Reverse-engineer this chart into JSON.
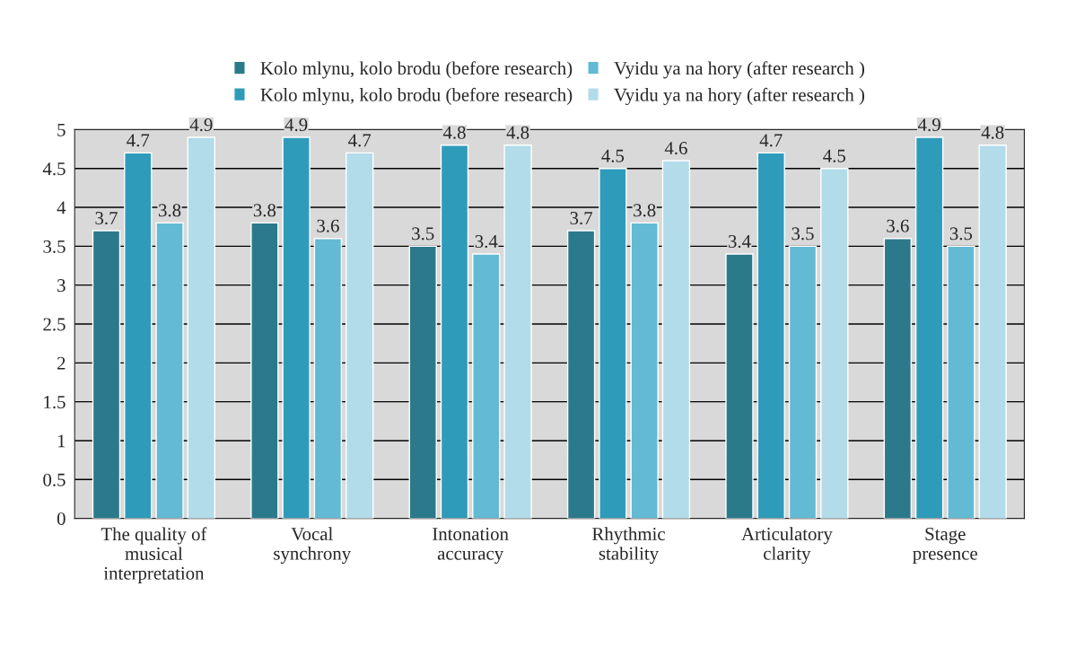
{
  "chart_data": {
    "type": "bar",
    "categories": [
      "The quality of\nmusical\ninterpretation",
      "Vocal\nsynchrony",
      "Intonation\naccuracy",
      "Rhythmic\nstability",
      "Articulatory\nclarity",
      "Stage\npresence"
    ],
    "series": [
      {
        "name": "Kolo mlynu, kolo brodu (before research)",
        "color": "#2b7a8c",
        "values": [
          3.7,
          3.8,
          3.5,
          3.7,
          3.4,
          3.6
        ]
      },
      {
        "name": "Kolo mlynu, kolo brodu (before research)",
        "color": "#2f9bbb",
        "values": [
          4.7,
          4.9,
          4.8,
          4.5,
          4.7,
          4.9
        ]
      },
      {
        "name": "Vyidu ya na hory (after research )",
        "color": "#62bad4",
        "values": [
          3.8,
          3.6,
          3.4,
          3.8,
          3.5,
          3.5
        ]
      },
      {
        "name": "Vyidu ya na hory (after research )",
        "color": "#b2dcea",
        "values": [
          4.9,
          4.7,
          4.8,
          4.6,
          4.5,
          4.8
        ]
      }
    ],
    "ylim": [
      0,
      5
    ],
    "yticks": [
      0,
      0.5,
      1,
      1.5,
      2,
      2.5,
      3,
      3.5,
      4,
      4.5,
      5
    ],
    "grid": "y",
    "legend": "top",
    "data_labels": true
  }
}
